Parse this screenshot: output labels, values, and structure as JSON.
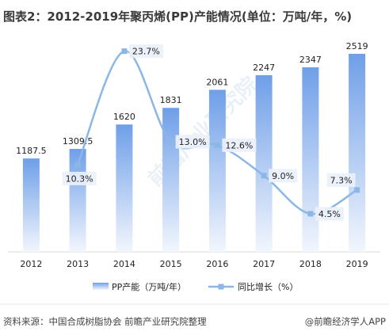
{
  "title": "图表2：2012-2019年聚丙烯(PP)产能情况(单位：万吨/年，%)",
  "footer": {
    "source": "资料来源：中国合成树脂协会 前瞻产业研究院整理",
    "brand": "@前瞻经济学人APP"
  },
  "watermark": "前瞻产业研究院",
  "colors": {
    "bar_top": "#6f9fe8",
    "bar_bottom": "#f2f6fd",
    "line": "#8bb7e6",
    "marker": "#8bb7e6",
    "label_bg": "#eaf1fa",
    "title": "#3a3a3a"
  },
  "chart_data": {
    "type": "bar",
    "categories": [
      "2012",
      "2013",
      "2014",
      "2015",
      "2016",
      "2017",
      "2018",
      "2019"
    ],
    "series": [
      {
        "name": "PP产能（万吨/年）",
        "type": "bar",
        "axis": "left",
        "values": [
          1187.5,
          1309.5,
          1620,
          1831,
          2061,
          2247,
          2347,
          2519
        ],
        "labels": [
          "1187.5",
          "1309.5",
          "1620",
          "1831",
          "2061",
          "2247",
          "2347",
          "2519"
        ]
      },
      {
        "name": "同比增长（%）",
        "type": "line",
        "axis": "right",
        "smooth": true,
        "x": [
          "2013",
          "2014",
          "2015",
          "2016",
          "2017",
          "2018",
          "2019"
        ],
        "values": [
          10.3,
          23.7,
          13.0,
          12.6,
          9.0,
          4.5,
          7.3
        ],
        "labels": [
          "10.3%",
          "23.7%",
          "13.0%",
          "12.6%",
          "9.0%",
          "4.5%",
          "7.3%"
        ]
      }
    ],
    "ylim_left": [
      0,
      2800
    ],
    "ylim_right": [
      0,
      26
    ],
    "legend": "bottom-center",
    "grid": false,
    "xlabel": "",
    "ylabel": ""
  }
}
